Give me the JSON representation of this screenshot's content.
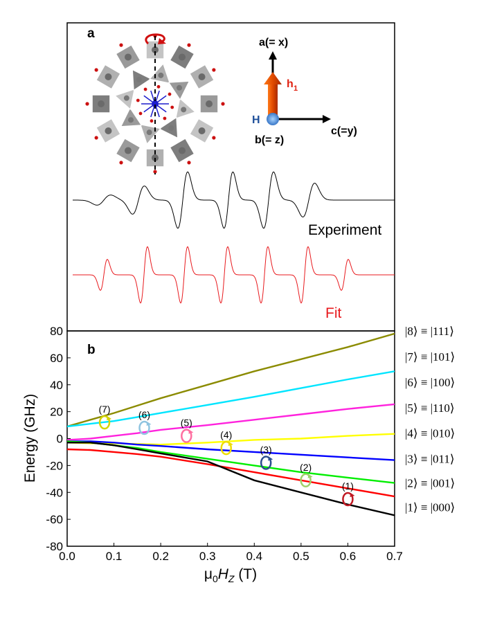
{
  "panel_a": {
    "letter": "a",
    "experiment_label": "Experiment",
    "fit_label": "Fit",
    "axes": {
      "vertical": "a(= x)",
      "horizontal": "c(=y)",
      "out_of_plane": "b(= z)",
      "field": "H",
      "h_main": "h",
      "h_sub": "1"
    },
    "colors": {
      "experiment": "#000000",
      "fit": "#e8191d",
      "arrow": "#cc3300",
      "h_point": "#3a78c8"
    }
  },
  "panel_b": {
    "letter": "b"
  },
  "chart_data": {
    "type": "line",
    "xlabel_prefix": "μ",
    "xlabel_sub": "0",
    "xlabel_var": "H",
    "xlabel_var_sub": "Z",
    "xlabel_suffix": " (T)",
    "ylabel": "Energy (GHz)",
    "xlim": [
      0.0,
      0.7
    ],
    "ylim": [
      -80,
      80
    ],
    "x_ticks": [
      "0.0",
      "0.1",
      "0.2",
      "0.3",
      "0.4",
      "0.5",
      "0.6",
      "0.7"
    ],
    "y_ticks": [
      "80",
      "60",
      "40",
      "20",
      "0",
      "-20",
      "-40",
      "-60",
      "-80"
    ],
    "x": [
      0.0,
      0.05,
      0.1,
      0.15,
      0.2,
      0.3,
      0.4,
      0.5,
      0.6,
      0.7
    ],
    "series": [
      {
        "name": "|8⟩ ≡ |111⟩",
        "color": "#8b8b00",
        "values": [
          9,
          14,
          19,
          24.5,
          30,
          40,
          50,
          59,
          68,
          78
        ]
      },
      {
        "name": "|7⟩ ≡ |101⟩",
        "color": "#00e5ff",
        "values": [
          9,
          11,
          13,
          16,
          19,
          25,
          31,
          37.5,
          44,
          50
        ]
      },
      {
        "name": "|6⟩ ≡ |100⟩",
        "color": "#ff22dd",
        "values": [
          -1,
          0,
          2,
          4,
          6.5,
          10,
          14,
          18,
          22,
          25.5
        ]
      },
      {
        "name": "|5⟩ ≡ |110⟩",
        "color": "#ffff00",
        "values": [
          -3,
          -3.5,
          -3.5,
          -4,
          -4.5,
          -3,
          -1,
          0,
          2,
          3.5
        ]
      },
      {
        "name": "|4⟩ ≡ |010⟩",
        "color": "#0000ff",
        "values": [
          -2,
          -2,
          -3,
          -4.5,
          -5.5,
          -8,
          -10,
          -12,
          -14,
          -16
        ]
      },
      {
        "name": "|3⟩ ≡ |011⟩",
        "color": "#00ee00",
        "values": [
          -2,
          -3,
          -5,
          -7,
          -10,
          -15,
          -20,
          -25,
          -29,
          -33
        ]
      },
      {
        "name": "|2⟩ ≡ |001⟩",
        "color": "#ff0000",
        "values": [
          -8,
          -8.5,
          -10,
          -11.5,
          -13.5,
          -19,
          -25,
          -31,
          -37,
          -43
        ]
      },
      {
        "name": "|1⟩ ≡ |000⟩",
        "color": "#000000",
        "values": [
          -3,
          -3,
          -5,
          -8,
          -11,
          -17,
          -31,
          -40,
          -49,
          -57
        ]
      }
    ],
    "state_labels": [
      {
        "text": "|8⟩ ≡ |111⟩",
        "y": 80
      },
      {
        "text": "|7⟩ ≡ |101⟩",
        "y": 61
      },
      {
        "text": "|6⟩ ≡ |100⟩",
        "y": 42
      },
      {
        "text": "|5⟩ ≡ |110⟩",
        "y": 23
      },
      {
        "text": "|4⟩ ≡ |010⟩",
        "y": 4
      },
      {
        "text": "|3⟩ ≡ |011⟩",
        "y": -15
      },
      {
        "text": "|2⟩ ≡ |001⟩",
        "y": -33
      },
      {
        "text": "|1⟩ ≡ |000⟩",
        "y": -51
      }
    ],
    "transitions": [
      {
        "label": "(7)",
        "x": 0.08,
        "y": 12,
        "color": "#d4d400"
      },
      {
        "label": "(6)",
        "x": 0.165,
        "y": 8,
        "color": "#8fc4e0"
      },
      {
        "label": "(5)",
        "x": 0.255,
        "y": 2,
        "color": "#ff6ea0"
      },
      {
        "label": "(4)",
        "x": 0.34,
        "y": -7,
        "color": "#eedd00"
      },
      {
        "label": "(3)",
        "x": 0.425,
        "y": -18,
        "color": "#2a4d8f"
      },
      {
        "label": "(2)",
        "x": 0.51,
        "y": -31,
        "color": "#9fd06a"
      },
      {
        "label": "(1)",
        "x": 0.6,
        "y": -45,
        "color": "#c01822"
      }
    ]
  }
}
